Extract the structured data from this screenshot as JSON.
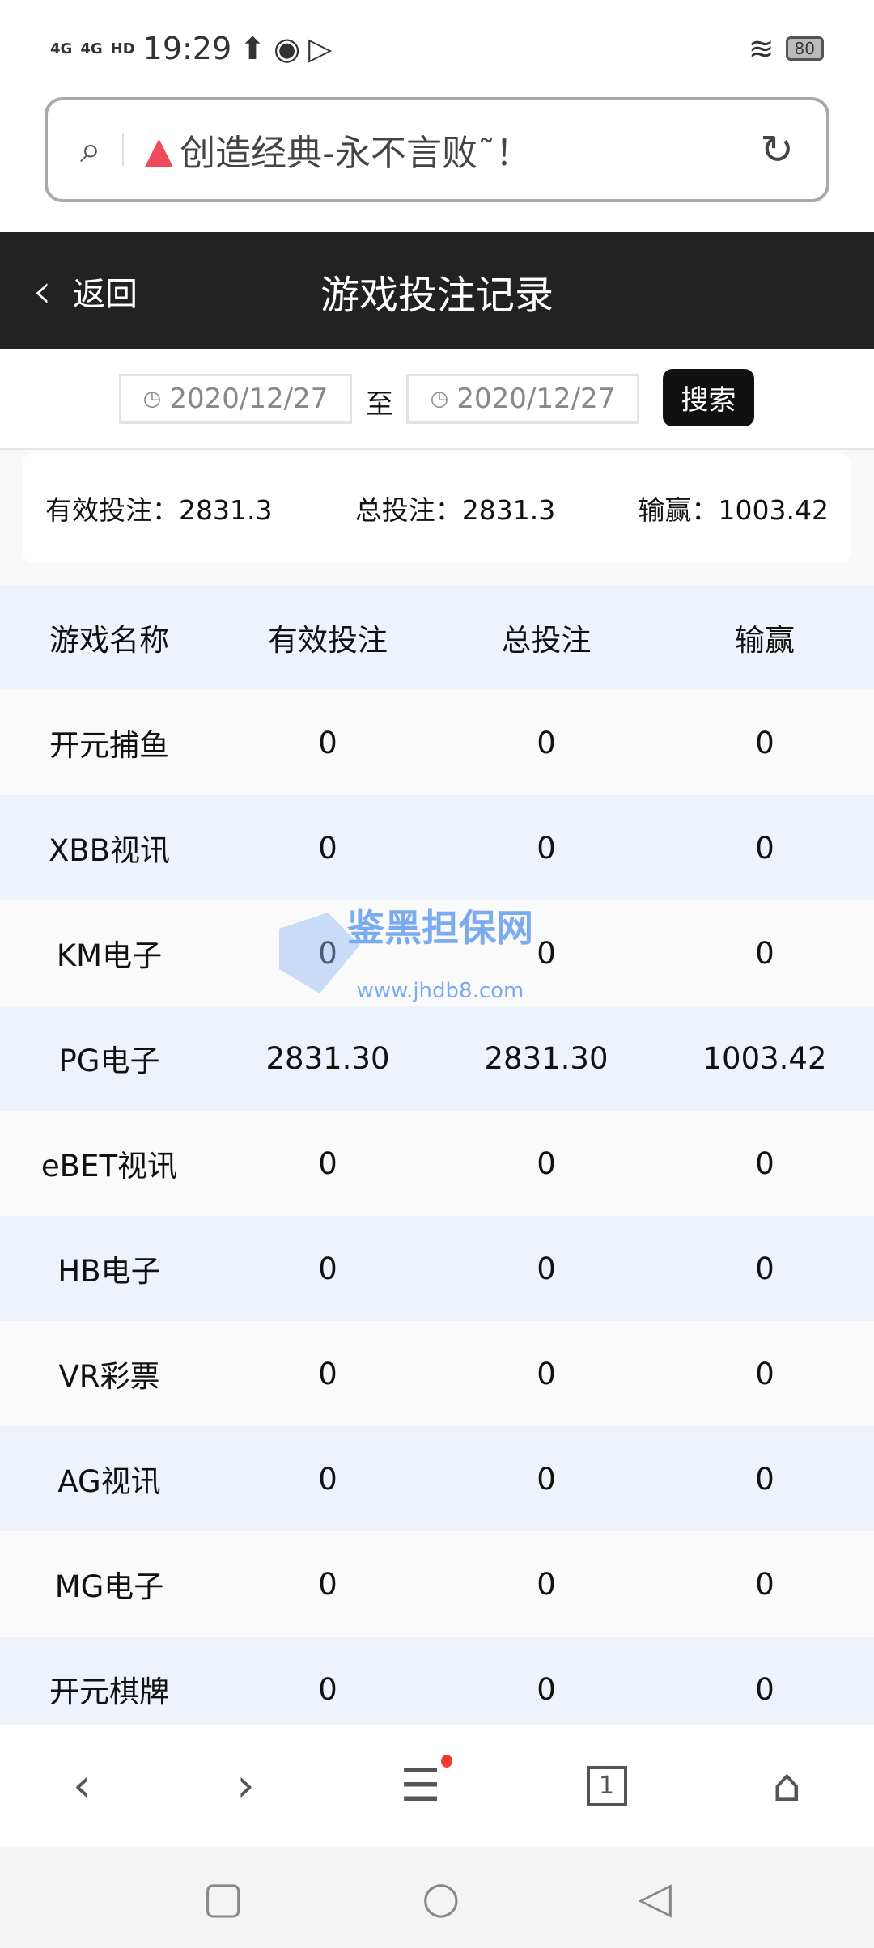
{
  "status": {
    "signal1": "4G",
    "signal2": "4G",
    "hd": "HD",
    "time": "19:29",
    "battery": "80"
  },
  "url": {
    "text": "创造经典-永不言败˜！"
  },
  "header": {
    "back": "返回",
    "title": "游戏投注记录"
  },
  "filter": {
    "start": "2020/12/27",
    "to": "至",
    "end": "2020/12/27",
    "search": "搜索"
  },
  "summary": {
    "valid": "有效投注：2831.3",
    "total": "总投注：2831.3",
    "winloss": "输赢：1003.42"
  },
  "table": {
    "headers": [
      "游戏名称",
      "有效投注",
      "总投注",
      "输赢"
    ],
    "rows": [
      [
        "开元捕鱼",
        "0",
        "0",
        "0"
      ],
      [
        "XBB视讯",
        "0",
        "0",
        "0"
      ],
      [
        "KM电子",
        "0",
        "0",
        "0"
      ],
      [
        "PG电子",
        "2831.30",
        "2831.30",
        "1003.42"
      ],
      [
        "eBET视讯",
        "0",
        "0",
        "0"
      ],
      [
        "HB电子",
        "0",
        "0",
        "0"
      ],
      [
        "VR彩票",
        "0",
        "0",
        "0"
      ],
      [
        "AG视讯",
        "0",
        "0",
        "0"
      ],
      [
        "MG电子",
        "0",
        "0",
        "0"
      ],
      [
        "开元棋牌",
        "0",
        "0",
        "0"
      ]
    ]
  },
  "watermark": {
    "name": "鉴黑担保网",
    "url": "www.jhdb8.com"
  },
  "bottom_nav": {
    "tabs_count": "1"
  },
  "colors": {
    "header_bg": "#222222",
    "row_alt": "#eef3fb",
    "warn": "#ef4b5a",
    "dot": "#f23c32"
  }
}
